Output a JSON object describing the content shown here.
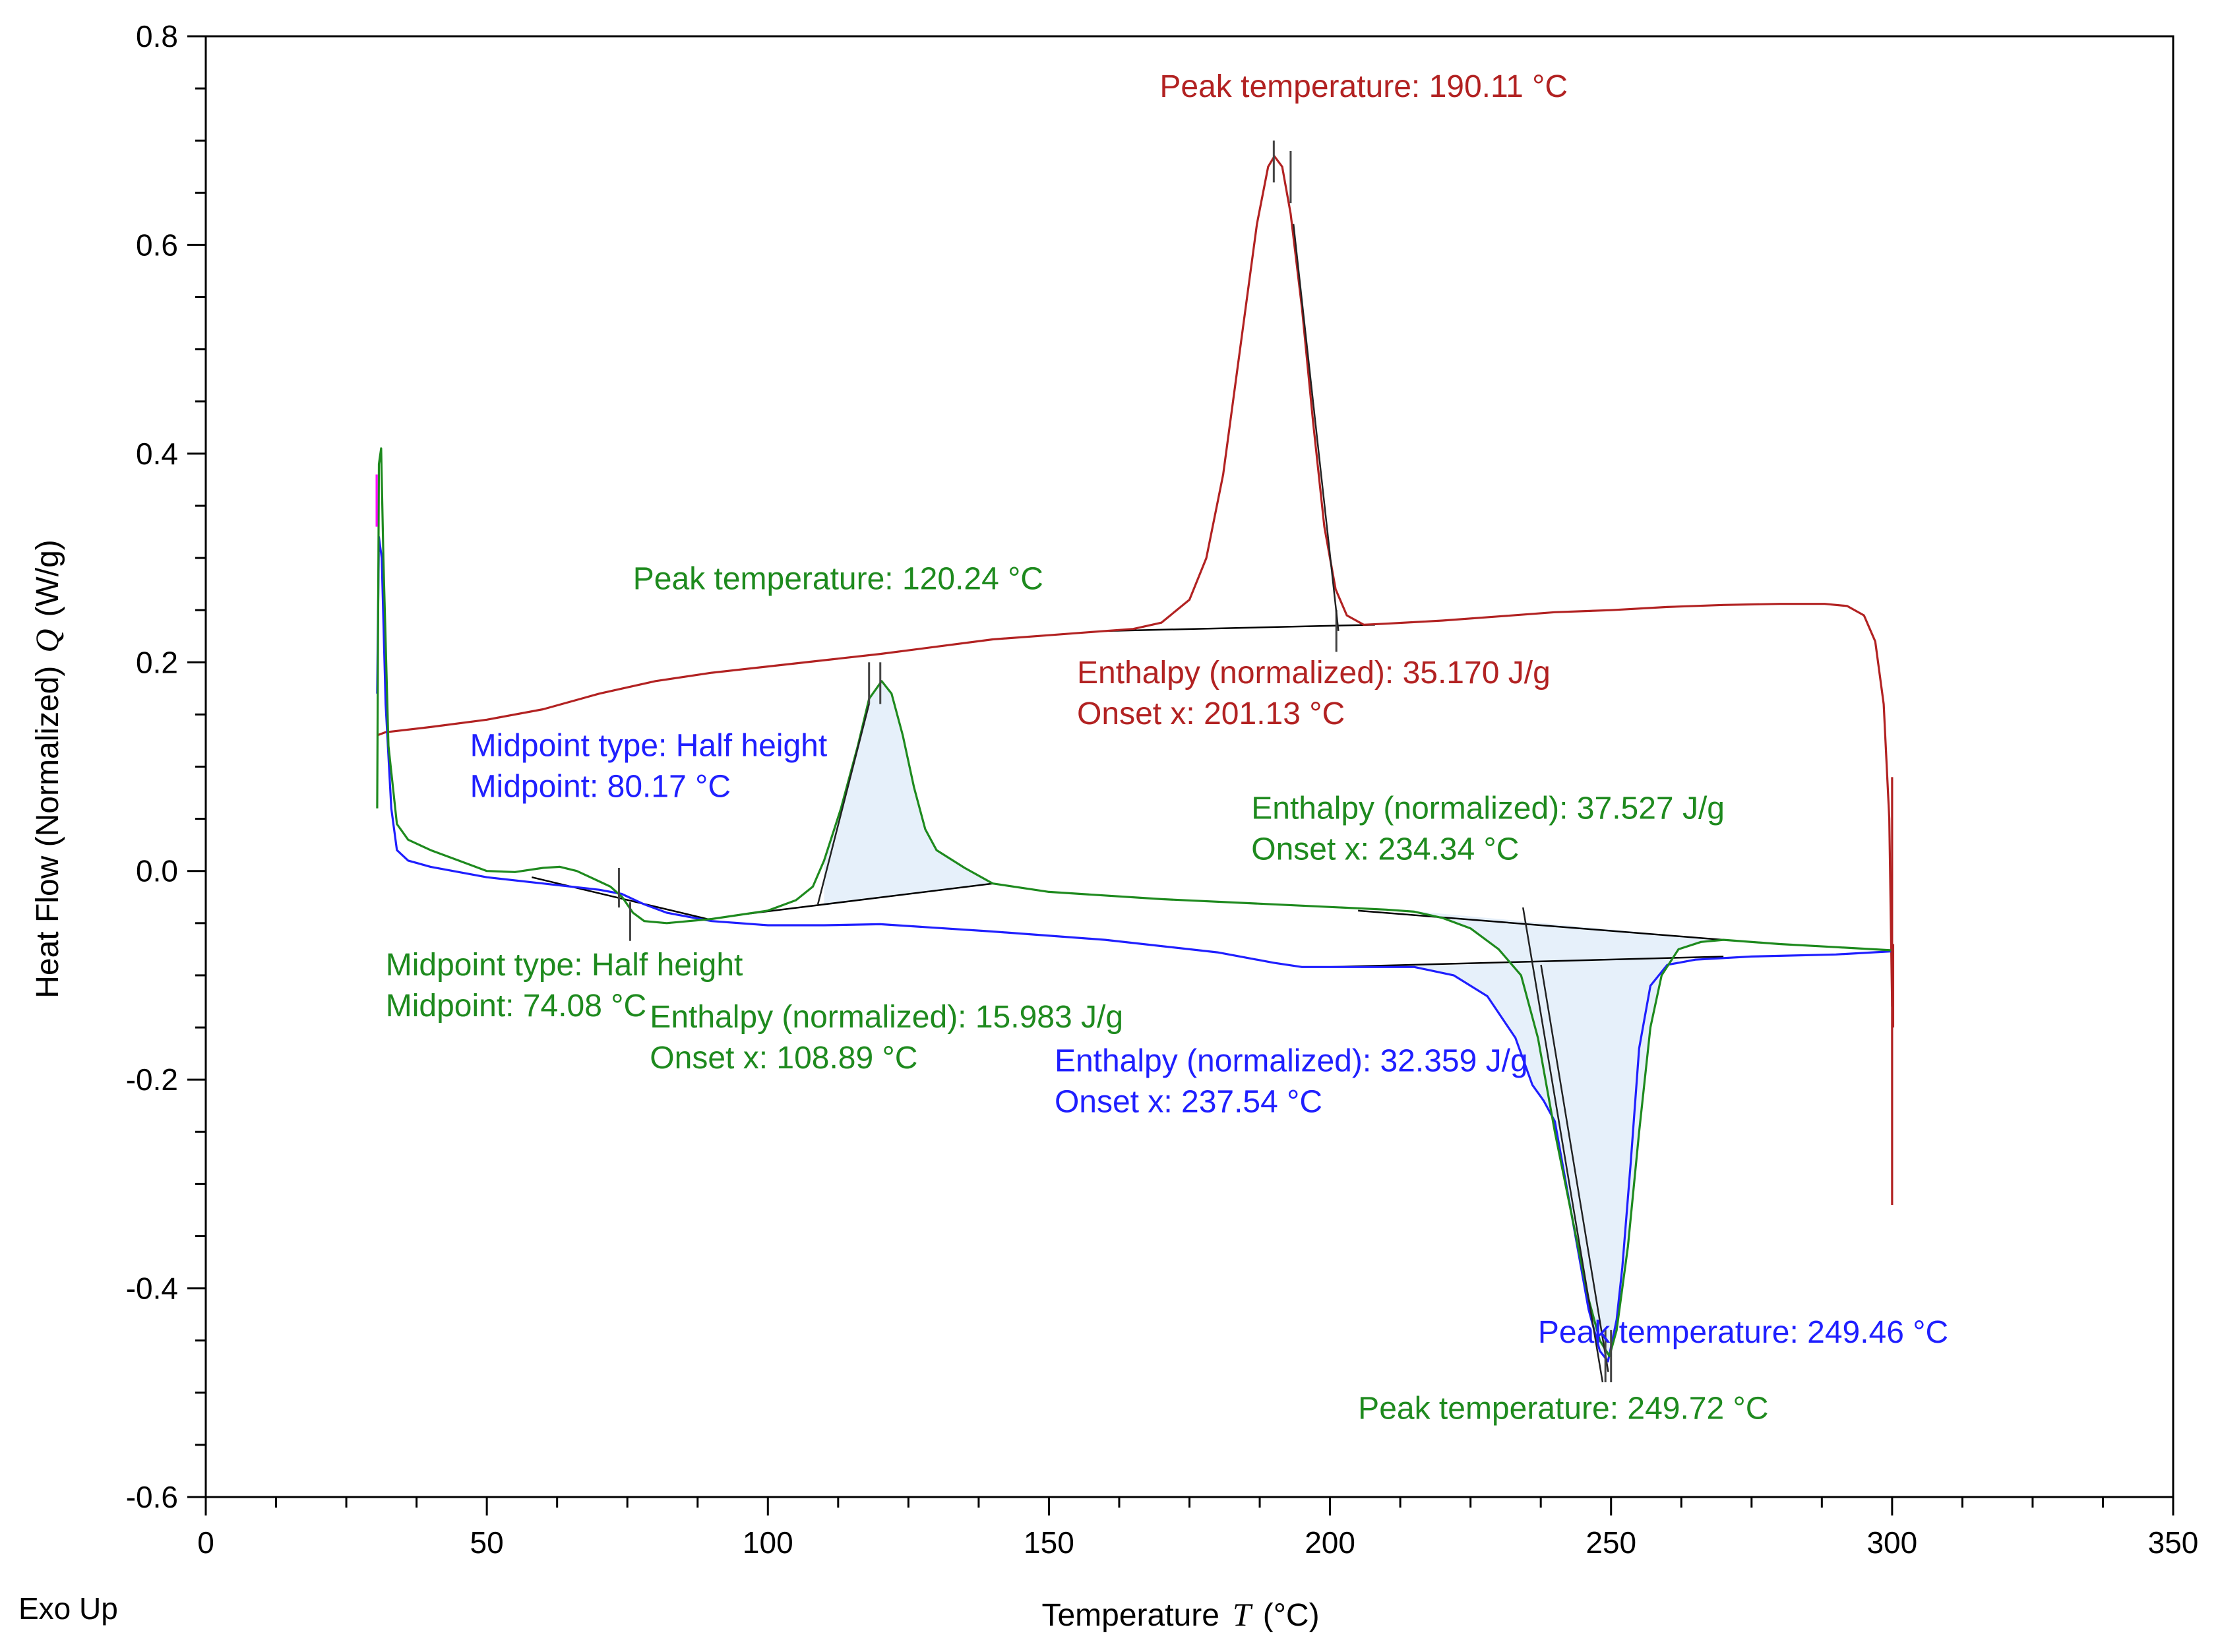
{
  "chart_data": {
    "type": "line",
    "footer_note": "Exo Up",
    "xlabel": {
      "main": "Temperature",
      "symbol": "T",
      "unit": "(°C)"
    },
    "ylabel": {
      "main": "Heat Flow (Normalized)",
      "symbol": "Q",
      "unit": "(W/g)"
    },
    "xlim": [
      0,
      350
    ],
    "ylim": [
      -0.6,
      0.8
    ],
    "x_ticks": [
      0,
      50,
      100,
      150,
      200,
      250,
      300,
      350
    ],
    "x_tick_labels": [
      "0",
      "50",
      "100",
      "150",
      "200",
      "250",
      "300",
      "350"
    ],
    "y_ticks": [
      -0.6,
      -0.4,
      -0.2,
      0.0,
      0.2,
      0.4,
      0.6,
      0.8
    ],
    "y_tick_labels": [
      "-0.6",
      "-0.4",
      "-0.2",
      "0.0",
      "0.2",
      "0.4",
      "0.6",
      "0.8"
    ],
    "colors": {
      "red": "#b22222",
      "green": "#1e8a1e",
      "blue": "#1f1fff",
      "magenta": "#ff00ff",
      "fill": "#e6f0fa",
      "baseline": "#000000"
    },
    "series": [
      {
        "name": "red",
        "color": "#b22222",
        "points": [
          [
            30.5,
            0.13
          ],
          [
            32,
            0.133
          ],
          [
            40,
            0.138
          ],
          [
            50,
            0.145
          ],
          [
            60,
            0.155
          ],
          [
            70,
            0.17
          ],
          [
            80,
            0.182
          ],
          [
            90,
            0.19
          ],
          [
            100,
            0.196
          ],
          [
            110,
            0.202
          ],
          [
            120,
            0.208
          ],
          [
            130,
            0.215
          ],
          [
            140,
            0.222
          ],
          [
            150,
            0.226
          ],
          [
            160,
            0.23
          ],
          [
            165,
            0.232
          ],
          [
            170,
            0.238
          ],
          [
            175,
            0.26
          ],
          [
            178,
            0.3
          ],
          [
            181,
            0.38
          ],
          [
            184,
            0.5
          ],
          [
            187,
            0.62
          ],
          [
            189,
            0.675
          ],
          [
            190.11,
            0.685
          ],
          [
            191.5,
            0.675
          ],
          [
            193,
            0.63
          ],
          [
            195,
            0.54
          ],
          [
            197,
            0.43
          ],
          [
            199,
            0.33
          ],
          [
            201,
            0.27
          ],
          [
            203,
            0.245
          ],
          [
            206,
            0.236
          ],
          [
            210,
            0.237
          ],
          [
            220,
            0.24
          ],
          [
            230,
            0.244
          ],
          [
            240,
            0.248
          ],
          [
            250,
            0.25
          ],
          [
            260,
            0.253
          ],
          [
            270,
            0.255
          ],
          [
            280,
            0.256
          ],
          [
            288,
            0.256
          ],
          [
            292,
            0.254
          ],
          [
            295,
            0.245
          ],
          [
            297,
            0.22
          ],
          [
            298.5,
            0.16
          ],
          [
            299.5,
            0.05
          ],
          [
            300,
            -0.13
          ]
        ]
      },
      {
        "name": "green",
        "color": "#1e8a1e",
        "points": [
          [
            30.5,
            0.06
          ],
          [
            30.8,
            0.39
          ],
          [
            31.2,
            0.405
          ],
          [
            31.6,
            0.3
          ],
          [
            32.5,
            0.12
          ],
          [
            34,
            0.045
          ],
          [
            36,
            0.03
          ],
          [
            40,
            0.02
          ],
          [
            45,
            0.01
          ],
          [
            50,
            0.0
          ],
          [
            55,
            -0.001
          ],
          [
            60,
            0.003
          ],
          [
            63,
            0.004
          ],
          [
            66,
            0.0
          ],
          [
            70,
            -0.01
          ],
          [
            72,
            -0.015
          ],
          [
            74.08,
            -0.025
          ],
          [
            76,
            -0.04
          ],
          [
            78,
            -0.048
          ],
          [
            82,
            -0.05
          ],
          [
            90,
            -0.046
          ],
          [
            100,
            -0.038
          ],
          [
            105,
            -0.028
          ],
          [
            108,
            -0.015
          ],
          [
            110,
            0.01
          ],
          [
            113,
            0.06
          ],
          [
            116,
            0.12
          ],
          [
            118,
            0.165
          ],
          [
            120.24,
            0.182
          ],
          [
            122,
            0.17
          ],
          [
            124,
            0.13
          ],
          [
            126,
            0.08
          ],
          [
            128,
            0.04
          ],
          [
            130,
            0.02
          ],
          [
            135,
            0.003
          ],
          [
            140,
            -0.012
          ],
          [
            150,
            -0.02
          ],
          [
            170,
            -0.027
          ],
          [
            190,
            -0.032
          ],
          [
            210,
            -0.037
          ],
          [
            215,
            -0.039
          ],
          [
            220,
            -0.045
          ],
          [
            225,
            -0.055
          ],
          [
            230,
            -0.075
          ],
          [
            234,
            -0.1
          ],
          [
            237,
            -0.16
          ],
          [
            240,
            -0.25
          ],
          [
            243,
            -0.33
          ],
          [
            246,
            -0.41
          ],
          [
            248,
            -0.45
          ],
          [
            249.72,
            -0.465
          ],
          [
            251,
            -0.44
          ],
          [
            253,
            -0.36
          ],
          [
            255,
            -0.25
          ],
          [
            257,
            -0.15
          ],
          [
            259,
            -0.1
          ],
          [
            262,
            -0.075
          ],
          [
            266,
            -0.068
          ],
          [
            270,
            -0.066
          ],
          [
            280,
            -0.07
          ],
          [
            290,
            -0.073
          ],
          [
            300,
            -0.076
          ]
        ]
      },
      {
        "name": "blue",
        "color": "#1f1fff",
        "points": [
          [
            30.5,
            0.17
          ],
          [
            30.8,
            0.32
          ],
          [
            31.3,
            0.3
          ],
          [
            32,
            0.16
          ],
          [
            33,
            0.06
          ],
          [
            34,
            0.02
          ],
          [
            36,
            0.01
          ],
          [
            40,
            0.004
          ],
          [
            50,
            -0.006
          ],
          [
            60,
            -0.012
          ],
          [
            70,
            -0.018
          ],
          [
            74,
            -0.022
          ],
          [
            78,
            -0.032
          ],
          [
            82,
            -0.04
          ],
          [
            90,
            -0.048
          ],
          [
            100,
            -0.052
          ],
          [
            110,
            -0.052
          ],
          [
            120,
            -0.051
          ],
          [
            140,
            -0.058
          ],
          [
            160,
            -0.066
          ],
          [
            180,
            -0.078
          ],
          [
            190,
            -0.088
          ],
          [
            195,
            -0.092
          ],
          [
            205,
            -0.092
          ],
          [
            215,
            -0.092
          ],
          [
            222,
            -0.1
          ],
          [
            228,
            -0.12
          ],
          [
            233,
            -0.16
          ],
          [
            236,
            -0.205
          ],
          [
            238,
            -0.22
          ],
          [
            240,
            -0.24
          ],
          [
            243,
            -0.33
          ],
          [
            246,
            -0.42
          ],
          [
            248,
            -0.46
          ],
          [
            249.46,
            -0.47
          ],
          [
            251,
            -0.43
          ],
          [
            252,
            -0.38
          ],
          [
            253.5,
            -0.28
          ],
          [
            255,
            -0.17
          ],
          [
            257,
            -0.11
          ],
          [
            260,
            -0.09
          ],
          [
            265,
            -0.085
          ],
          [
            275,
            -0.082
          ],
          [
            290,
            -0.08
          ],
          [
            300,
            -0.077
          ]
        ]
      },
      {
        "name": "magenta",
        "color": "#ff00ff",
        "points": [
          [
            30.4,
            0.38
          ],
          [
            30.4,
            0.33
          ]
        ]
      }
    ],
    "annotations": [
      {
        "color": "#b22222",
        "x": 206,
        "y": 0.742,
        "anchor": "middle",
        "lines": [
          "Peak temperature: 190.11 °C"
        ]
      },
      {
        "color": "#b22222",
        "x": 155,
        "y": 0.18,
        "anchor": "start",
        "lines": [
          "Enthalpy (normalized): 35.170 J/g",
          "Onset x: 201.13 °C"
        ]
      },
      {
        "color": "#1e8a1e",
        "x": 76,
        "y": 0.27,
        "anchor": "start",
        "lines": [
          "Peak temperature: 120.24 °C"
        ]
      },
      {
        "color": "#1f1fff",
        "x": 47,
        "y": 0.11,
        "anchor": "start",
        "lines": [
          "Midpoint type: Half height",
          "Midpoint: 80.17 °C"
        ]
      },
      {
        "color": "#1e8a1e",
        "x": 186,
        "y": 0.05,
        "anchor": "start",
        "lines": [
          "Enthalpy (normalized): 37.527 J/g",
          "Onset x: 234.34 °C"
        ]
      },
      {
        "color": "#1e8a1e",
        "x": 32,
        "y": -0.1,
        "anchor": "start",
        "lines": [
          "Midpoint type: Half height",
          "Midpoint: 74.08 °C"
        ]
      },
      {
        "color": "#1e8a1e",
        "x": 79,
        "y": -0.15,
        "anchor": "start",
        "lines": [
          "Enthalpy (normalized): 15.983 J/g",
          "Onset x: 108.89 °C"
        ]
      },
      {
        "color": "#1f1fff",
        "x": 151,
        "y": -0.192,
        "anchor": "start",
        "lines": [
          "Enthalpy (normalized): 32.359 J/g",
          "Onset x: 237.54 °C"
        ]
      },
      {
        "color": "#1f1fff",
        "x": 237,
        "y": -0.452,
        "anchor": "start",
        "lines": [
          "Peak temperature: 249.46 °C"
        ]
      },
      {
        "color": "#1e8a1e",
        "x": 205,
        "y": -0.525,
        "anchor": "start",
        "lines": [
          "Peak temperature: 249.72 °C"
        ]
      }
    ]
  }
}
